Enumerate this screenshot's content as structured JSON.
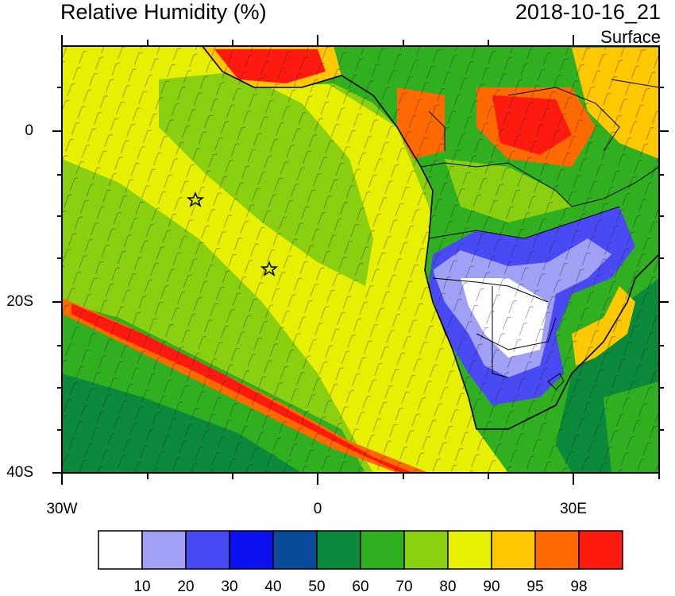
{
  "header": {
    "title": "Relative Humidity (%)",
    "datetime": "2018-10-16_21",
    "level": "Surface"
  },
  "axes": {
    "lat_labels": [
      "0",
      "20S",
      "40S"
    ],
    "lon_labels": [
      "30W",
      "0",
      "30E"
    ]
  },
  "colorbar": {
    "labels": [
      "10",
      "20",
      "30",
      "40",
      "50",
      "60",
      "70",
      "80",
      "90",
      "95",
      "98"
    ],
    "colors": [
      "#ffffff",
      "#a0a0f5",
      "#4a4af5",
      "#0a10f0",
      "#0a4a9a",
      "#0a8a3a",
      "#30b020",
      "#8ad010",
      "#e6f000",
      "#ffc800",
      "#ff6a00",
      "#ff1a10"
    ]
  },
  "map_colors": {
    "green_dark": "#0a8a3a",
    "green": "#30b020",
    "yellowgreen": "#8ad010",
    "yellow": "#e6f000",
    "orange": "#ffc800",
    "red": "#ff1a10",
    "blue": "#4a4af5",
    "lightblue": "#a0a0f5"
  }
}
